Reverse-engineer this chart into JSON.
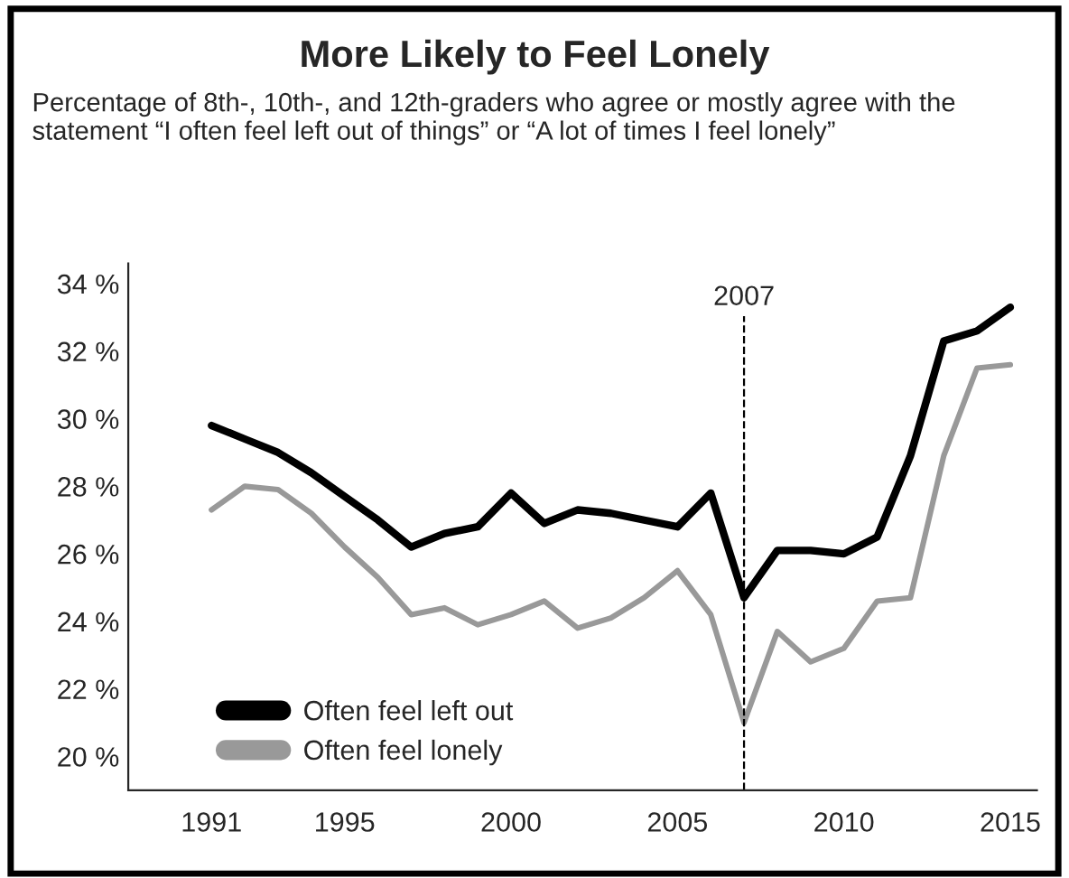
{
  "chart_data": {
    "type": "line",
    "title": "More Likely to Feel Lonely",
    "subtitle": "Percentage of 8th-, 10th-, and 12th-graders who agree or mostly agree with the statement “I often feel left out of things” or “A lot of times I feel lonely”",
    "x": [
      1991,
      1992,
      1993,
      1994,
      1995,
      1996,
      1997,
      1998,
      1999,
      2000,
      2001,
      2002,
      2003,
      2004,
      2005,
      2006,
      2007,
      2008,
      2009,
      2010,
      2011,
      2012,
      2013,
      2014,
      2015
    ],
    "series": [
      {
        "name": "Often feel left out",
        "color": "#000000",
        "values": [
          29.8,
          29.4,
          29.0,
          28.4,
          27.7,
          27.0,
          26.2,
          26.6,
          26.8,
          27.8,
          26.9,
          27.3,
          27.2,
          27.0,
          26.8,
          27.8,
          24.7,
          26.1,
          26.1,
          26.0,
          26.5,
          28.9,
          32.3,
          32.6,
          33.3
        ]
      },
      {
        "name": "Often feel lonely",
        "color": "#999999",
        "values": [
          27.3,
          28.0,
          27.9,
          27.2,
          26.2,
          25.3,
          24.2,
          24.4,
          23.9,
          24.2,
          24.6,
          23.8,
          24.1,
          24.7,
          25.5,
          24.2,
          21.0,
          23.7,
          22.8,
          23.2,
          24.6,
          24.7,
          28.9,
          31.5,
          31.6
        ]
      }
    ],
    "xlim": [
      1988.5,
      2015.8
    ],
    "xticks": [
      1991,
      1995,
      2000,
      2005,
      2010,
      2015
    ],
    "ylim": [
      19,
      34.6
    ],
    "yticks": [
      {
        "value": 20,
        "label": "20 %"
      },
      {
        "value": 22,
        "label": "22 %"
      },
      {
        "value": 24,
        "label": "24 %"
      },
      {
        "value": 26,
        "label": "26 %"
      },
      {
        "value": 28,
        "label": "28 %"
      },
      {
        "value": 30,
        "label": "30 %"
      },
      {
        "value": 32,
        "label": "32 %"
      },
      {
        "value": 34,
        "label": "34 %"
      }
    ],
    "ref_lines": [
      {
        "axis": "x",
        "value": 2007,
        "label": "2007",
        "color": "#000000",
        "line_style": "dashed"
      }
    ],
    "legend": "bottom left",
    "grid": false,
    "marker": "none",
    "line_style": "solid"
  }
}
